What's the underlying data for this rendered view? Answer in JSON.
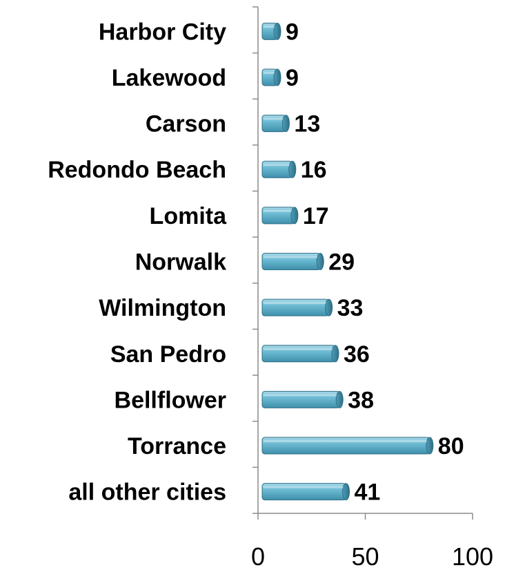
{
  "chart_data": {
    "type": "bar",
    "orientation": "horizontal",
    "categories": [
      "Harbor City",
      "Lakewood",
      "Carson",
      "Redondo Beach",
      "Lomita",
      "Norwalk",
      "Wilmington",
      "San Pedro",
      "Bellflower",
      "Torrance",
      "all other cities"
    ],
    "values": [
      9,
      9,
      13,
      16,
      17,
      29,
      33,
      36,
      38,
      80,
      41
    ],
    "xlim": [
      0,
      100
    ],
    "xticks": [
      0,
      50,
      100
    ],
    "title": "",
    "xlabel": "",
    "ylabel": "",
    "grid": false,
    "legend": "none",
    "bar_color": "#5aaec8",
    "bar_edge_color": "#2f6f86"
  }
}
